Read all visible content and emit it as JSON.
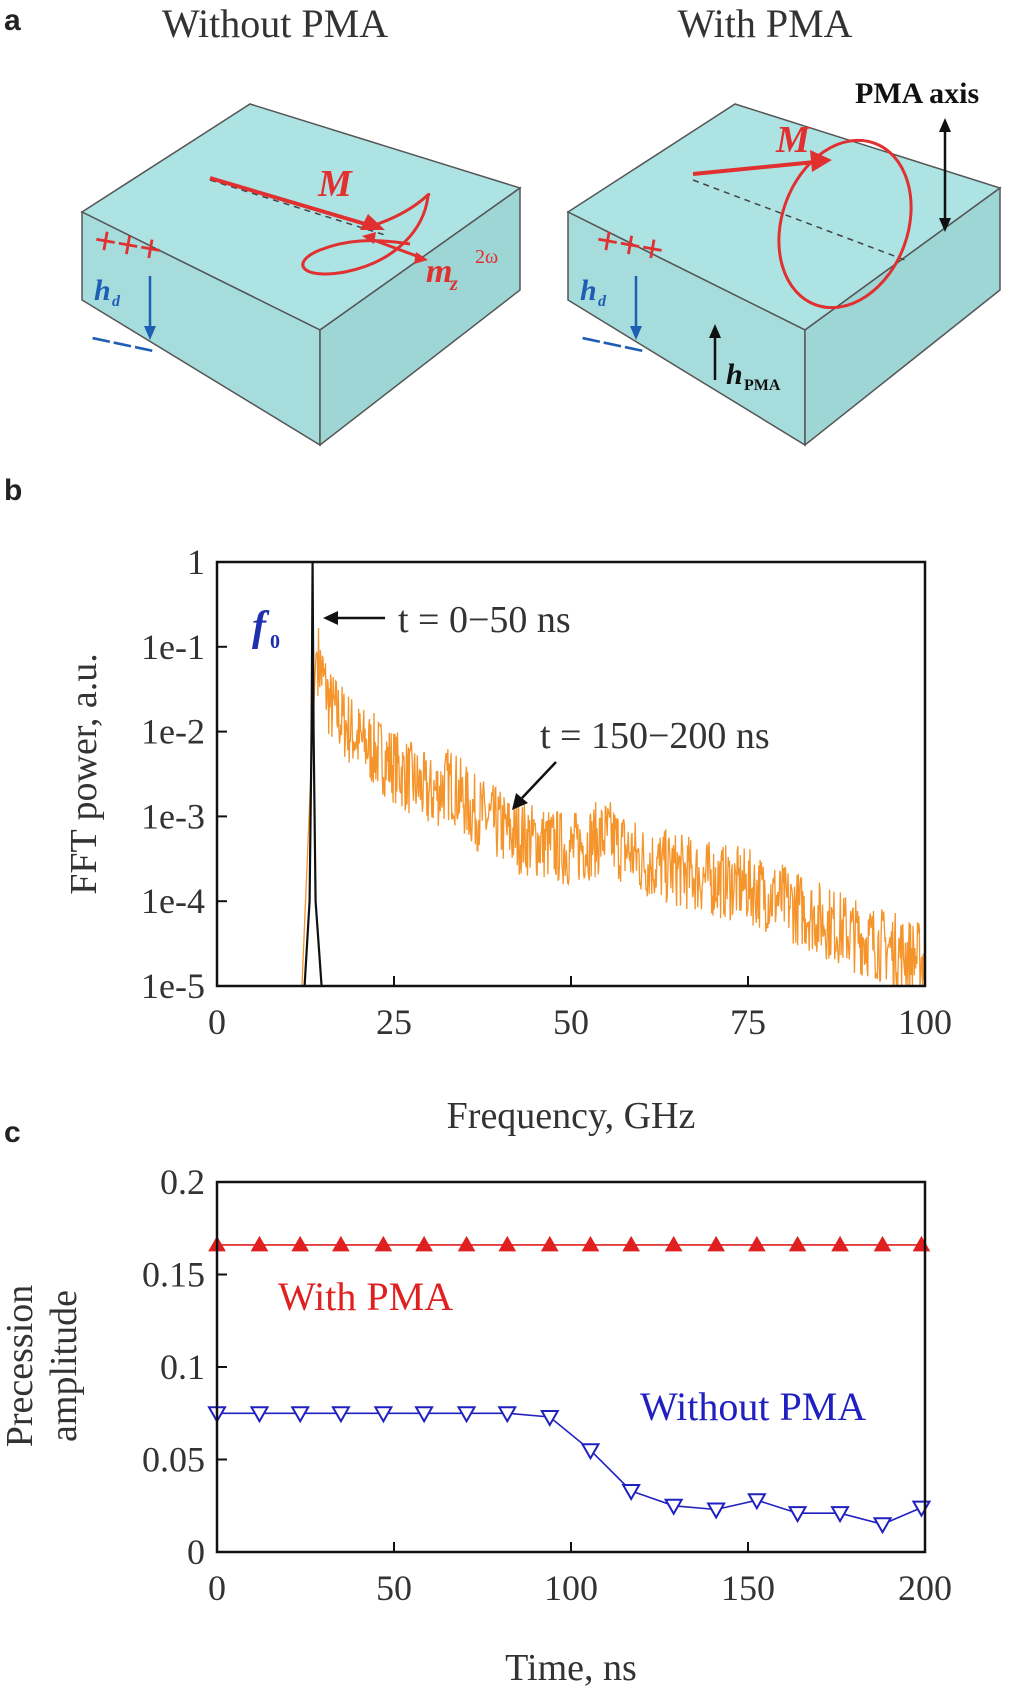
{
  "panel_a": {
    "label": "a",
    "left_title": "Without PMA",
    "right_title": "With PMA",
    "pma_axis_label": "PMA axis",
    "m_label": "M",
    "mz_label": "m",
    "mz_sub": "z",
    "mz_sup": "2ω",
    "hd_label": "h",
    "hd_sub": "d",
    "hpma_label": "h",
    "hpma_sub": "PMA",
    "plus_signs": "+++",
    "minus_signs": "−−−",
    "colors": {
      "slab": "#aee3e3",
      "red": "#e03030",
      "blue": "#1e5fb3",
      "edge": "#555555"
    }
  },
  "chart_data": [
    {
      "id": "b",
      "type": "line",
      "panel_label": "b",
      "xlabel": "Frequency, GHz",
      "ylabel": "FFT power, a.u.",
      "xlim": [
        0,
        100
      ],
      "ylim_log": [
        -5,
        0
      ],
      "yscale": "log",
      "x_ticks": [
        "0",
        "25",
        "50",
        "75",
        "100"
      ],
      "y_ticks": [
        "1",
        "1e-1",
        "1e-2",
        "1e-3",
        "1e-4",
        "1e-5"
      ],
      "annotations": {
        "f0": "f",
        "f0_sub": "0",
        "t_short": "t = 0−50 ns",
        "t_long": "t = 150−200 ns"
      },
      "series": [
        {
          "name": "t = 0−50 ns",
          "color": "#111111",
          "peak_x": 13.5,
          "peak_y": 1
        },
        {
          "name": "t = 150−200 ns",
          "color": "#f5942a",
          "envelope": [
            [
              12,
              1e-05
            ],
            [
              14,
              0.09
            ],
            [
              16,
              0.02
            ],
            [
              20,
              0.008
            ],
            [
              25,
              0.004
            ],
            [
              30,
              0.0018
            ],
            [
              33,
              0.0025
            ],
            [
              36,
              0.0012
            ],
            [
              42,
              0.0006
            ],
            [
              50,
              0.0004
            ],
            [
              55,
              0.0006
            ],
            [
              60,
              0.0003
            ],
            [
              70,
              0.00018
            ],
            [
              75,
              0.00015
            ],
            [
              80,
              0.0001
            ],
            [
              90,
              4e-05
            ],
            [
              100,
              2e-05
            ]
          ]
        }
      ]
    },
    {
      "id": "c",
      "type": "line",
      "panel_label": "c",
      "xlabel": "Time, ns",
      "ylabel": [
        "Precession",
        "amplitude"
      ],
      "xlim": [
        0,
        200
      ],
      "ylim": [
        0,
        0.2
      ],
      "x_ticks": [
        "0",
        "50",
        "100",
        "150",
        "200"
      ],
      "y_ticks": [
        "0.2",
        "0.15",
        "0.1",
        "0.05",
        "0"
      ],
      "series": [
        {
          "name": "With PMA",
          "color": "#e02020",
          "marker": "triangle-up",
          "x": [
            0,
            12,
            23.5,
            35,
            47,
            58.5,
            70.5,
            82,
            94,
            105.5,
            117,
            129,
            141,
            152.5,
            164,
            176,
            188,
            199
          ],
          "y": [
            0.166,
            0.166,
            0.166,
            0.166,
            0.166,
            0.166,
            0.166,
            0.166,
            0.166,
            0.166,
            0.166,
            0.166,
            0.166,
            0.166,
            0.166,
            0.166,
            0.166,
            0.166
          ]
        },
        {
          "name": "Without PMA",
          "color": "#2020c0",
          "marker": "triangle-down",
          "x": [
            0,
            12,
            23.5,
            35,
            47,
            58.5,
            70.5,
            82,
            94,
            105.5,
            117,
            129,
            141,
            152.5,
            164,
            176,
            188,
            199
          ],
          "y": [
            0.075,
            0.075,
            0.075,
            0.075,
            0.075,
            0.075,
            0.075,
            0.075,
            0.073,
            0.055,
            0.033,
            0.025,
            0.023,
            0.028,
            0.021,
            0.021,
            0.015,
            0.024
          ]
        }
      ]
    }
  ]
}
